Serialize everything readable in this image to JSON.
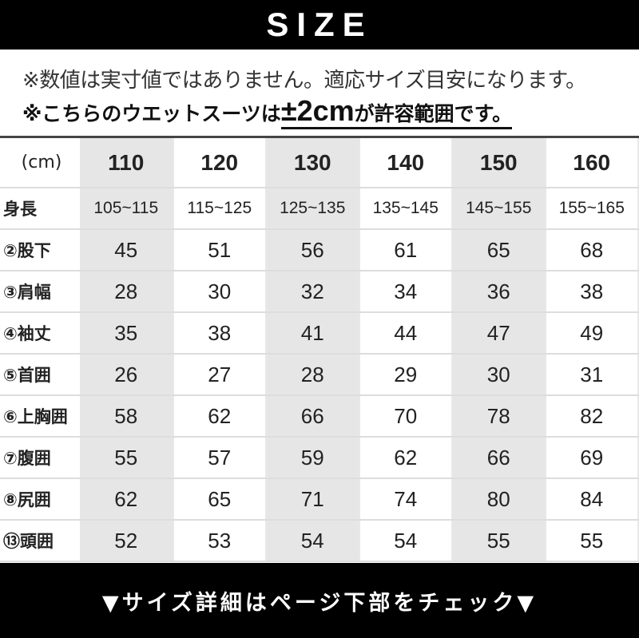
{
  "banner": {
    "title": "SIZE"
  },
  "notes": {
    "line1": "※数値は実寸値ではありません。適応サイズ目安になります。",
    "line2_prefix": "※こちらのウエットスーツは",
    "line2_tolerance": "±2cm",
    "line2_suffix": "が許容範囲です。"
  },
  "table": {
    "unit_label": "(cm)",
    "sizes": [
      "110",
      "120",
      "130",
      "140",
      "150",
      "160"
    ],
    "rows": [
      {
        "label": "身長",
        "values": [
          "105~115",
          "115~125",
          "125~135",
          "135~145",
          "145~155",
          "155~165"
        ]
      },
      {
        "label": "②股下",
        "values": [
          "45",
          "51",
          "56",
          "61",
          "65",
          "68"
        ]
      },
      {
        "label": "③肩幅",
        "values": [
          "28",
          "30",
          "32",
          "34",
          "36",
          "38"
        ]
      },
      {
        "label": "④袖丈",
        "values": [
          "35",
          "38",
          "41",
          "44",
          "47",
          "49"
        ]
      },
      {
        "label": "⑤首囲",
        "values": [
          "26",
          "27",
          "28",
          "29",
          "30",
          "31"
        ]
      },
      {
        "label": "⑥上胸囲",
        "values": [
          "58",
          "62",
          "66",
          "70",
          "78",
          "82"
        ]
      },
      {
        "label": "⑦腹囲",
        "values": [
          "55",
          "57",
          "59",
          "62",
          "66",
          "69"
        ]
      },
      {
        "label": "⑧尻囲",
        "values": [
          "62",
          "65",
          "71",
          "74",
          "80",
          "84"
        ]
      },
      {
        "label": "⑬頭囲",
        "values": [
          "52",
          "53",
          "54",
          "54",
          "55",
          "55"
        ]
      }
    ]
  },
  "footer": {
    "text": "▼サイズ詳細はページ下部をチェック▼"
  },
  "colors": {
    "banner": "#000000",
    "shaded_column": "#e6e6e6"
  }
}
